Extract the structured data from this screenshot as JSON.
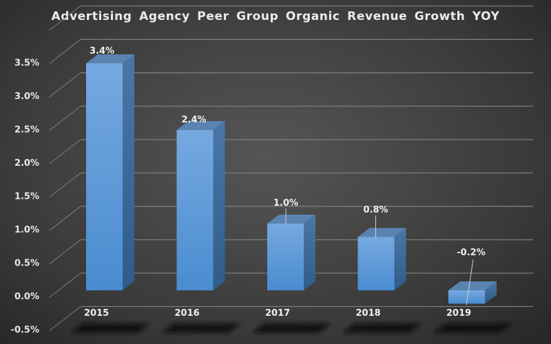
{
  "chart_data": {
    "type": "bar",
    "style": "3d-column",
    "title": "Advertising  Agency  Peer Group  Organic  Revenue  Growth  YOY",
    "xlabel": "",
    "ylabel": "",
    "categories": [
      "2015",
      "2016",
      "2017",
      "2018",
      "2019"
    ],
    "values": [
      3.4,
      2.4,
      1.0,
      0.8,
      -0.2
    ],
    "data_labels": [
      "3.4%",
      "2.4%",
      "1.0%",
      "0.8%",
      "-0.2%"
    ],
    "ylim": [
      -0.5,
      4.0
    ],
    "y_ticks": [
      -0.5,
      0.0,
      0.5,
      1.0,
      1.5,
      2.0,
      2.5,
      3.0,
      3.5
    ],
    "y_tick_labels": [
      "-0.5%",
      "0.0%",
      "0.5%",
      "1.0%",
      "1.5%",
      "2.0%",
      "2.5%",
      "3.0%",
      "3.5%"
    ],
    "grid": true,
    "legend": "none",
    "colors": {
      "bar_front": "#5b9bd5",
      "bar_side": "#3d6f9e",
      "bar_top": "#5a83b0",
      "gridline": "#7a7a7a",
      "text": "#eeeeee"
    }
  }
}
